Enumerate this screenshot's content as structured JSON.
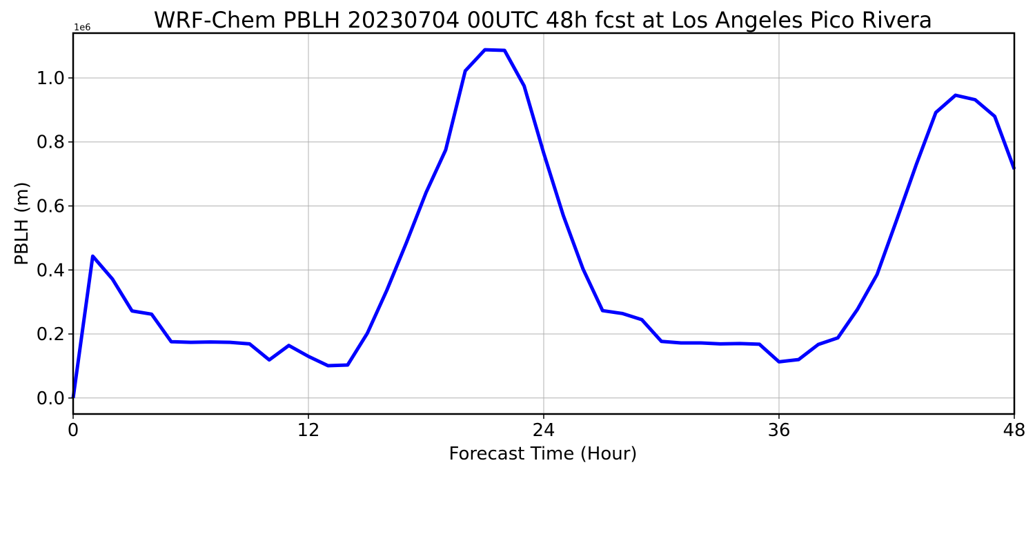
{
  "chart_data": {
    "type": "line",
    "title": "WRF-Chem PBLH  20230704 00UTC 48h fcst at Los Angeles Pico Rivera",
    "xlabel": "Forecast Time (Hour)",
    "ylabel": "PBLH  (m)",
    "y_offset_label": "1e6",
    "xlim": [
      0,
      48
    ],
    "ylim": [
      -0.05,
      1.14
    ],
    "y_scale_multiplier": 1000000,
    "x_ticks": [
      0,
      12,
      24,
      36,
      48
    ],
    "x_tick_labels": [
      "0",
      "12",
      "24",
      "36",
      "48"
    ],
    "y_ticks": [
      0.0,
      0.2,
      0.4,
      0.6,
      0.8,
      1.0
    ],
    "y_tick_labels": [
      "0.0",
      "0.2",
      "0.4",
      "0.6",
      "0.8",
      "1.0"
    ],
    "grid": true,
    "series": [
      {
        "color": "#0000ff",
        "x": [
          0,
          1,
          2,
          3,
          4,
          5,
          6,
          7,
          8,
          9,
          10,
          11,
          12,
          13,
          14,
          15,
          16,
          17,
          18,
          19,
          20,
          21,
          22,
          23,
          24,
          25,
          26,
          27,
          28,
          29,
          30,
          31,
          32,
          33,
          34,
          35,
          36,
          37,
          38,
          39,
          40,
          41,
          42,
          43,
          44,
          45,
          46,
          47,
          48
        ],
        "y": [
          0.0,
          0.443,
          0.372,
          0.272,
          0.262,
          0.176,
          0.174,
          0.175,
          0.174,
          0.169,
          0.119,
          0.164,
          0.13,
          0.101,
          0.103,
          0.202,
          0.337,
          0.486,
          0.642,
          0.775,
          1.022,
          1.088,
          1.086,
          0.975,
          0.765,
          0.57,
          0.404,
          0.273,
          0.264,
          0.245,
          0.177,
          0.172,
          0.172,
          0.169,
          0.17,
          0.168,
          0.113,
          0.12,
          0.167,
          0.188,
          0.277,
          0.386,
          0.556,
          0.729,
          0.892,
          0.946,
          0.932,
          0.88,
          0.715
        ]
      }
    ]
  }
}
